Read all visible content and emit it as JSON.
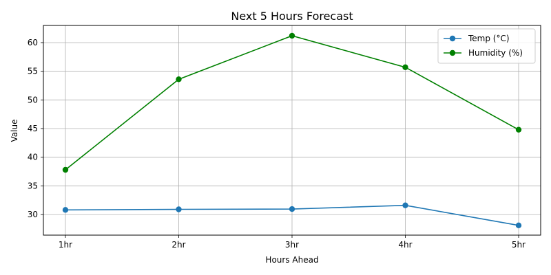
{
  "chart_data": {
    "type": "line",
    "title": "Next 5 Hours Forecast",
    "xlabel": "Hours Ahead",
    "ylabel": "Value",
    "categories": [
      "1hr",
      "2hr",
      "3hr",
      "4hr",
      "5hr"
    ],
    "ylim": [
      26.4,
      63.0
    ],
    "yticks": [
      30,
      35,
      40,
      45,
      50,
      55,
      60
    ],
    "grid": true,
    "legend_position": "top-right",
    "series": [
      {
        "name": "Temp (°C)",
        "color": "#1f77b4",
        "values": [
          30.8,
          30.9,
          30.95,
          31.6,
          28.1
        ]
      },
      {
        "name": "Humidity (%)",
        "color": "#008000",
        "values": [
          37.8,
          53.6,
          61.2,
          55.7,
          44.8
        ]
      }
    ]
  }
}
